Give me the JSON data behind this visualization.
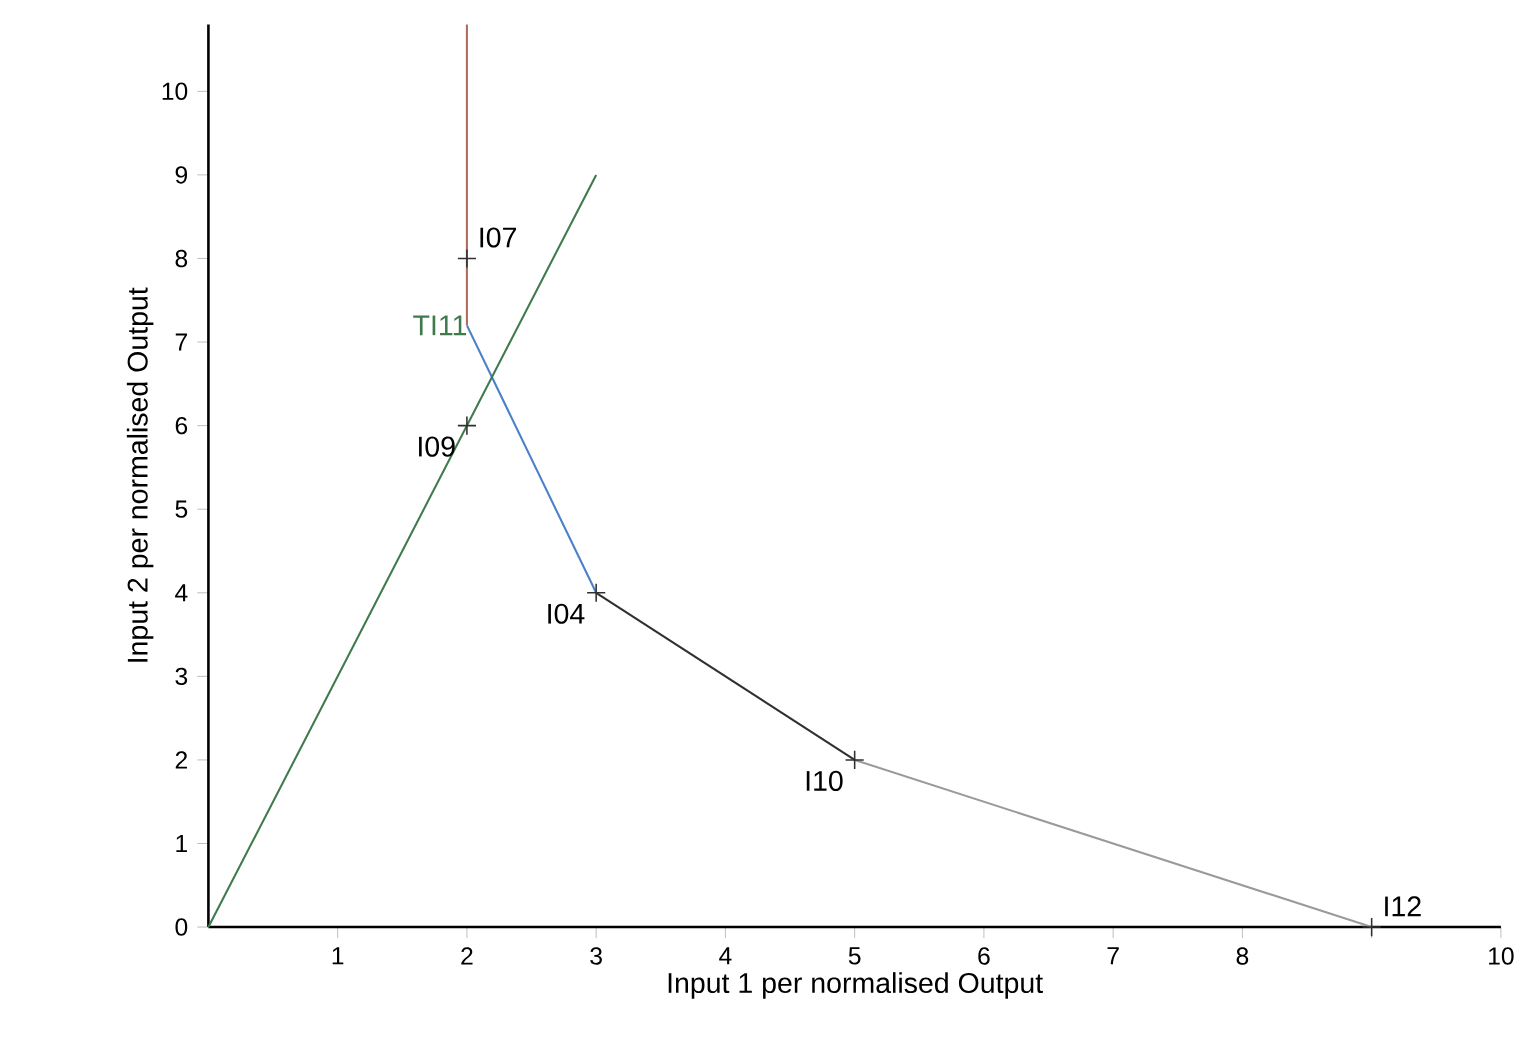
{
  "chart_data": {
    "type": "line",
    "xlabel": "Input 1 per normalised Output",
    "ylabel": "Input 2 per normalised Output",
    "xlim": [
      0,
      10
    ],
    "ylim": [
      0,
      10.8
    ],
    "xticks": [
      1,
      2,
      3,
      4,
      5,
      6,
      7,
      8,
      {
        "value": 9,
        "label": null
      },
      10
    ],
    "yticks": [
      0,
      1,
      2,
      3,
      4,
      5,
      6,
      7,
      8,
      9,
      10
    ],
    "series": [
      {
        "x": [
          2,
          2
        ],
        "values": [
          7.2,
          10.8
        ],
        "color": "#b06a60"
      },
      {
        "x": [
          2,
          3
        ],
        "values": [
          7.2,
          4
        ],
        "color": "#4a80c8"
      },
      {
        "x": [
          3,
          5
        ],
        "values": [
          4,
          2
        ],
        "color": "#303030"
      },
      {
        "x": [
          5,
          9
        ],
        "values": [
          2,
          0
        ],
        "color": "#9a9a9a"
      },
      {
        "name": "TI11",
        "x": [
          0,
          3
        ],
        "values": [
          0,
          9
        ],
        "color": "#3f7a4c"
      },
      {
        "type": "scatter",
        "x": [
          2,
          2,
          3,
          5,
          9
        ],
        "values": [
          8,
          6,
          4,
          2,
          0
        ],
        "color": "#303030",
        "marker": "cross"
      }
    ],
    "annotations": [
      {
        "text": "I07",
        "x": 2,
        "y": 8
      },
      {
        "text": "I09",
        "x": 2,
        "y": 6
      },
      {
        "text": "I04",
        "x": 3,
        "y": 4
      },
      {
        "text": "I10",
        "x": 5,
        "y": 2
      },
      {
        "text": "I12",
        "x": 9,
        "y": 0
      }
    ]
  }
}
